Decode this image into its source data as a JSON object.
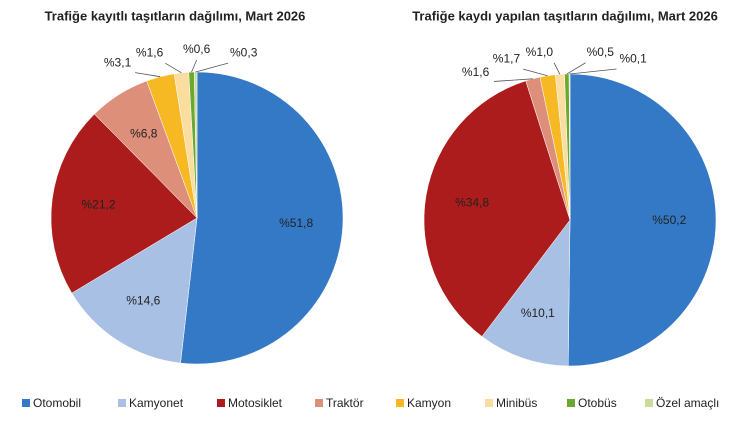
{
  "chart_data": [
    {
      "type": "pie",
      "title": "Trafiğe kayıtlı taşıtların dağılımı, Mart 2026",
      "categories": [
        "Otomobil",
        "Kamyonet",
        "Motosiklet",
        "Traktör",
        "Kamyon",
        "Minibüs",
        "Otobüs",
        "Özel amaçlı"
      ],
      "values": [
        51.8,
        14.6,
        21.2,
        6.8,
        3.1,
        1.6,
        0.6,
        0.3
      ],
      "value_labels": [
        "%51,8",
        "%14,6",
        "%21,2",
        "%6,8",
        "%3,1",
        "%1,6",
        "%0,6",
        "%0,3"
      ],
      "colors": [
        "#3479c6",
        "#a8c0e4",
        "#ad1c1c",
        "#de8f79",
        "#f6b923",
        "#fbdd9f",
        "#6aa82f",
        "#cadb9c"
      ]
    },
    {
      "type": "pie",
      "title": "Trafiğe kaydı yapılan taşıtların dağılımı, Mart 2026",
      "categories": [
        "Otomobil",
        "Kamyonet",
        "Motosiklet",
        "Traktör",
        "Kamyon",
        "Minibüs",
        "Otobüs",
        "Özel amaçlı"
      ],
      "values": [
        50.2,
        10.1,
        34.8,
        1.6,
        1.7,
        1.0,
        0.5,
        0.1
      ],
      "value_labels": [
        "%50,2",
        "%10,1",
        "%34,8",
        "%1,6",
        "%1,7",
        "%1,0",
        "%0,5",
        "%0,1"
      ],
      "colors": [
        "#3479c6",
        "#a8c0e4",
        "#ad1c1c",
        "#de8f79",
        "#f6b923",
        "#fbdd9f",
        "#6aa82f",
        "#cadb9c"
      ]
    }
  ]
}
